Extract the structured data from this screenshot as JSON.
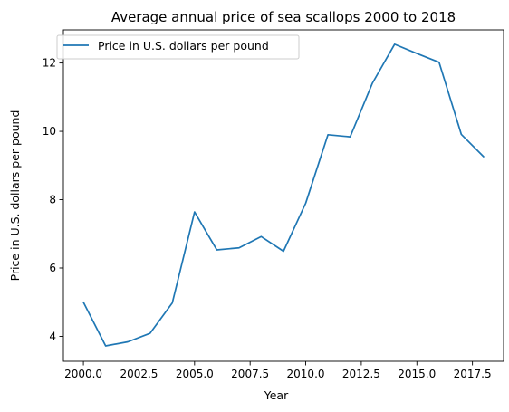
{
  "chart_data": {
    "type": "line",
    "title": "Average annual price of sea scallops 2000 to 2018",
    "xlabel": "Year",
    "ylabel": "Price in U.S. dollars per pound",
    "xlim": [
      1999.1,
      2018.9
    ],
    "ylim": [
      3.27,
      12.97
    ],
    "x_ticks": [
      2000.0,
      2002.5,
      2005.0,
      2007.5,
      2010.0,
      2012.5,
      2015.0,
      2017.5
    ],
    "x_tick_labels": [
      "2000.0",
      "2002.5",
      "2005.0",
      "2007.5",
      "2010.0",
      "2012.5",
      "2015.0",
      "2017.5"
    ],
    "y_ticks": [
      4,
      6,
      8,
      10,
      12
    ],
    "y_tick_labels": [
      "4",
      "6",
      "8",
      "10",
      "12"
    ],
    "grid": false,
    "legend_position": "top-left",
    "series": [
      {
        "name": "Price in U.S. dollars per pound",
        "color": "#1f77b4",
        "x": [
          2000,
          2001,
          2002,
          2003,
          2004,
          2005,
          2006,
          2007,
          2008,
          2009,
          2010,
          2011,
          2012,
          2013,
          2014,
          2015,
          2016,
          2017,
          2018
        ],
        "y": [
          5.0,
          3.72,
          3.84,
          4.09,
          4.98,
          7.64,
          6.53,
          6.59,
          6.92,
          6.49,
          7.9,
          9.9,
          9.84,
          11.41,
          12.55,
          12.28,
          12.02,
          9.91,
          9.26
        ]
      }
    ]
  }
}
